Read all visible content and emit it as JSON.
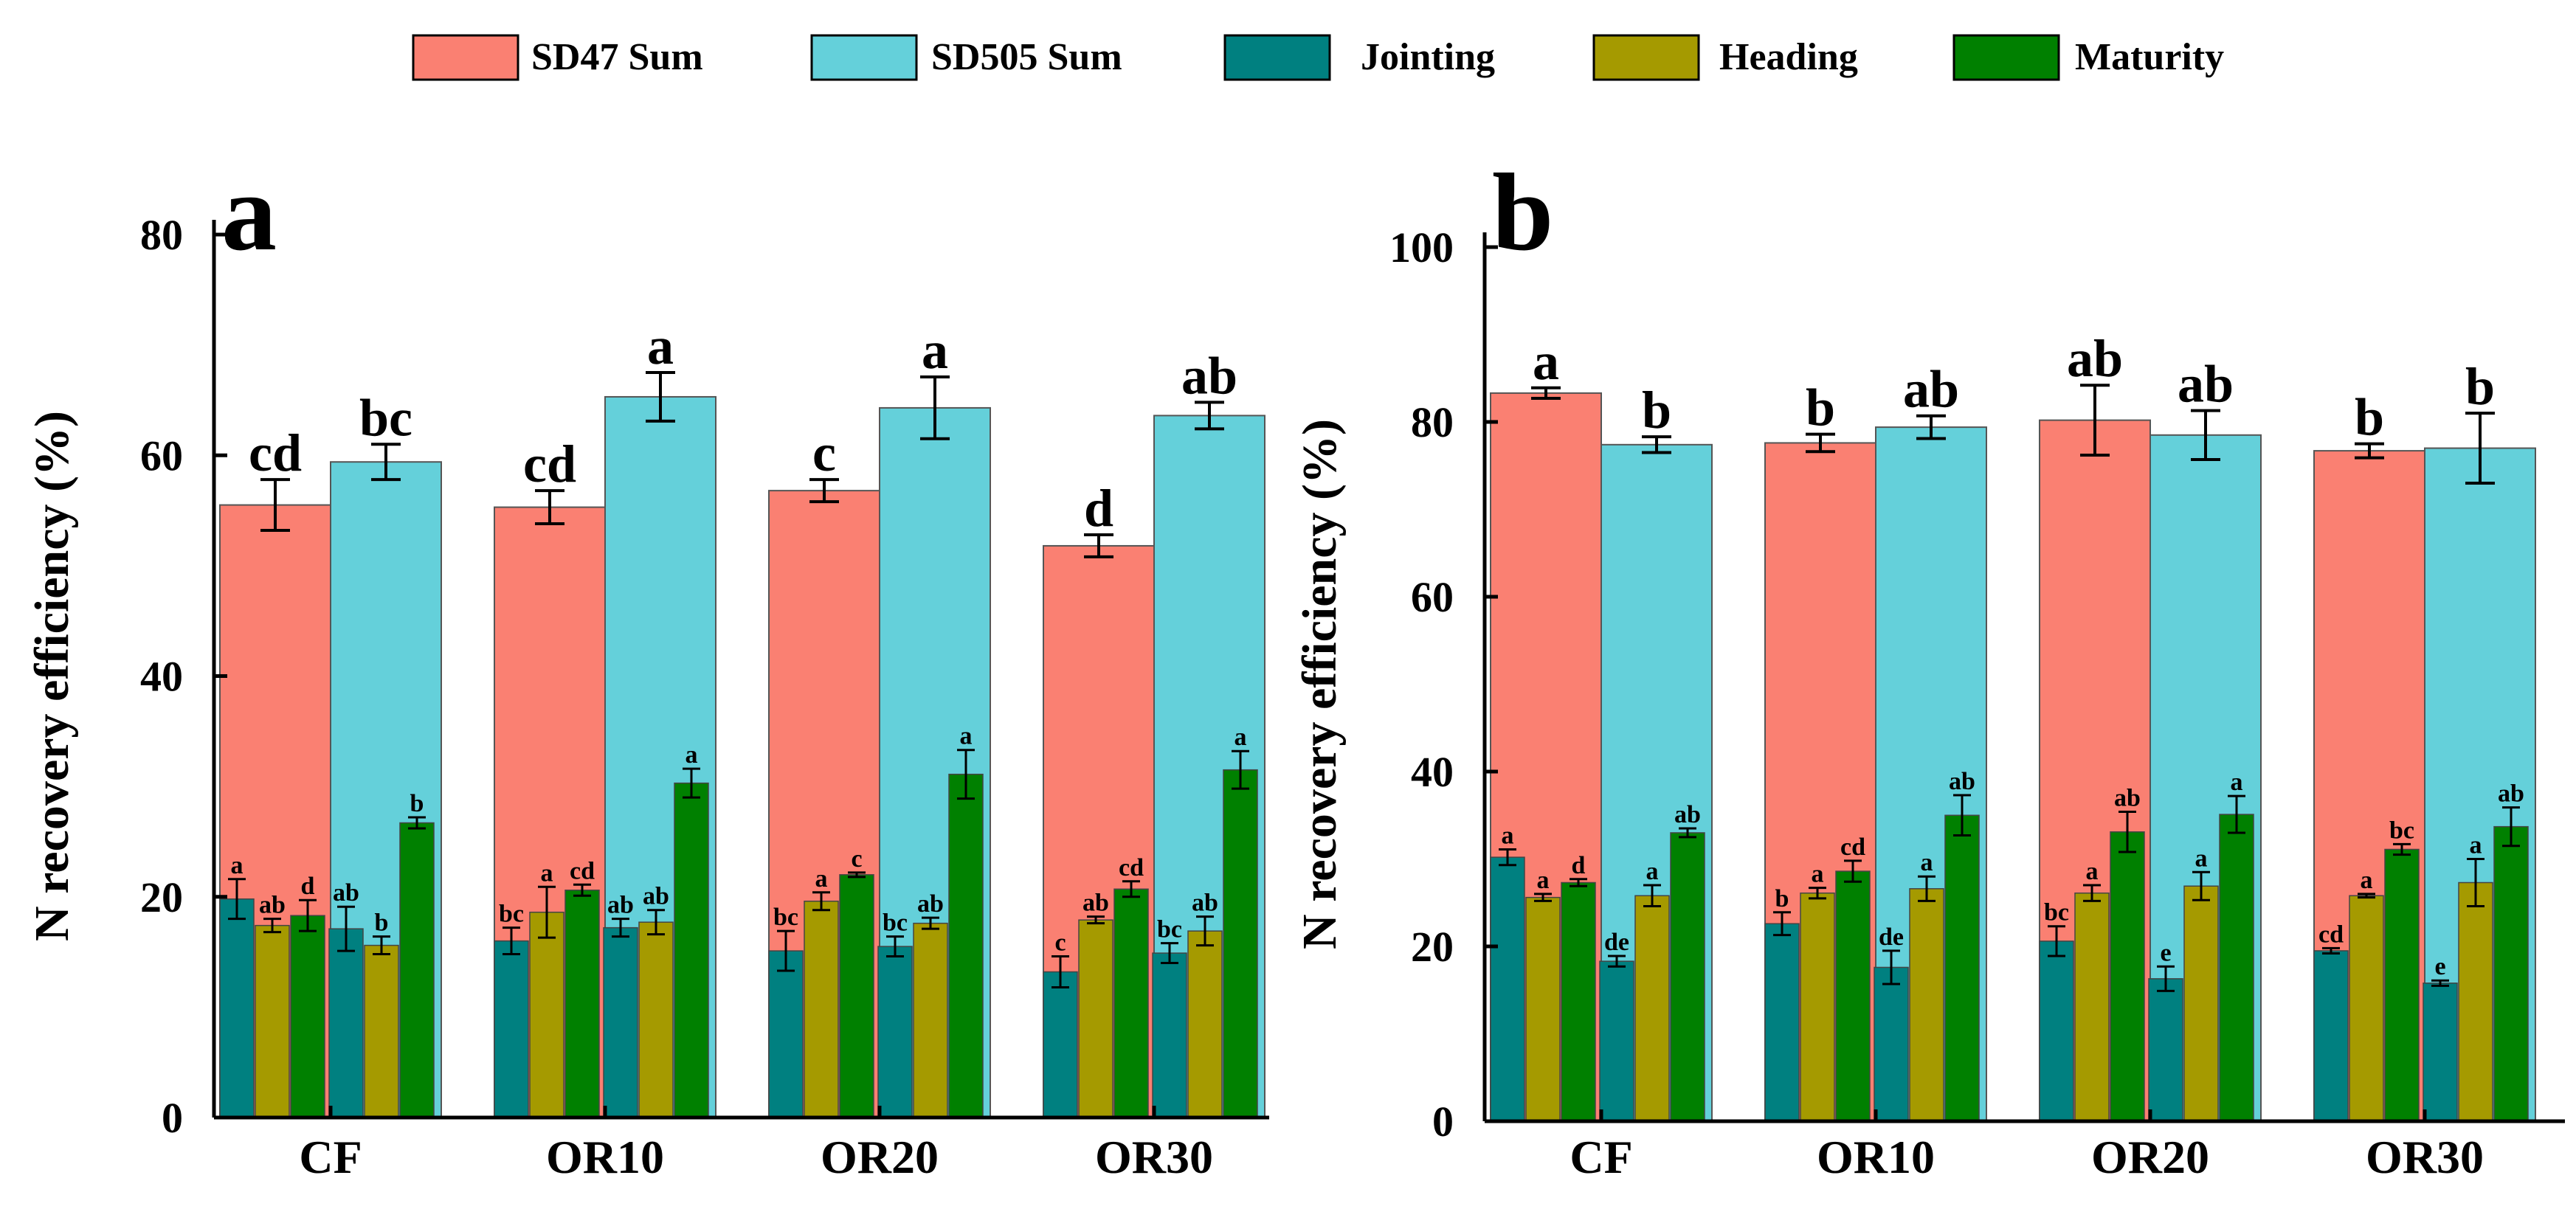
{
  "legend": [
    {
      "label": "SD47 Sum",
      "color": "#FA8072"
    },
    {
      "label": "SD505 Sum",
      "color": "#64D0DA"
    },
    {
      "label": "Jointing",
      "color": "#008080"
    },
    {
      "label": "Heading",
      "color": "#A59A00"
    },
    {
      "label": "Maturity",
      "color": "#008000"
    }
  ],
  "chart_data": [
    {
      "type": "bar",
      "panel_label": "a",
      "title": "",
      "xlabel": "",
      "ylabel": "N recovery efficiency (%)",
      "ylim": [
        0,
        80
      ],
      "yticks": [
        0,
        20,
        40,
        60,
        80
      ],
      "categories": [
        "CF",
        "OR10",
        "OR20",
        "OR30"
      ],
      "cultivars": [
        {
          "name": "SD47",
          "sum": {
            "values": [
              55.5,
              55.3,
              56.8,
              51.8
            ],
            "errors": [
              2.3,
              1.5,
              1.0,
              1.0
            ],
            "letters": [
              "cd",
              "cd",
              "c",
              "d"
            ]
          },
          "stages": {
            "Jointing": {
              "values": [
                19.8,
                16.0,
                15.1,
                13.2
              ],
              "errors": [
                1.8,
                1.2,
                1.8,
                1.4
              ],
              "letters": [
                "a",
                "bc",
                "bc",
                "c"
              ]
            },
            "Heading": {
              "values": [
                17.4,
                18.6,
                19.6,
                17.9
              ],
              "errors": [
                0.6,
                2.3,
                0.8,
                0.3
              ],
              "letters": [
                "ab",
                "a",
                "a",
                "ab"
              ]
            },
            "Maturity": {
              "values": [
                18.3,
                20.6,
                22.0,
                20.7
              ],
              "errors": [
                1.4,
                0.5,
                0.2,
                0.7
              ],
              "letters": [
                "d",
                "cd",
                "c",
                "cd"
              ]
            }
          }
        },
        {
          "name": "SD505",
          "sum": {
            "values": [
              59.4,
              65.3,
              64.3,
              63.6
            ],
            "errors": [
              1.6,
              2.2,
              2.8,
              1.2
            ],
            "letters": [
              "bc",
              "a",
              "a",
              "ab"
            ]
          },
          "stages": {
            "Jointing": {
              "values": [
                17.1,
                17.2,
                15.5,
                14.9
              ],
              "errors": [
                2.0,
                0.8,
                0.9,
                0.9
              ],
              "letters": [
                "ab",
                "ab",
                "bc",
                "bc"
              ]
            },
            "Heading": {
              "values": [
                15.6,
                17.7,
                17.6,
                16.9
              ],
              "errors": [
                0.8,
                1.1,
                0.5,
                1.3
              ],
              "letters": [
                "b",
                "ab",
                "ab",
                "ab"
              ]
            },
            "Maturity": {
              "values": [
                26.7,
                30.3,
                31.1,
                31.5
              ],
              "errors": [
                0.5,
                1.3,
                2.2,
                1.7
              ],
              "letters": [
                "b",
                "a",
                "a",
                "a"
              ]
            }
          }
        }
      ]
    },
    {
      "type": "bar",
      "panel_label": "b",
      "title": "",
      "xlabel": "",
      "ylabel": "N recovery efficiency (%)",
      "ylim": [
        0,
        100
      ],
      "yticks": [
        0,
        20,
        40,
        60,
        80,
        100
      ],
      "categories": [
        "CF",
        "OR10",
        "OR20",
        "OR30"
      ],
      "cultivars": [
        {
          "name": "SD47",
          "sum": {
            "values": [
              83.3,
              77.6,
              80.2,
              76.7
            ],
            "errors": [
              0.6,
              1.0,
              4.0,
              0.8
            ],
            "letters": [
              "a",
              "b",
              "ab",
              "b"
            ]
          },
          "stages": {
            "Jointing": {
              "values": [
                30.2,
                22.6,
                20.6,
                19.5
              ],
              "errors": [
                0.9,
                1.3,
                1.7,
                0.3
              ],
              "letters": [
                "a",
                "b",
                "bc",
                "cd"
              ]
            },
            "Heading": {
              "values": [
                25.6,
                26.1,
                26.1,
                25.8
              ],
              "errors": [
                0.4,
                0.6,
                0.9,
                0.2
              ],
              "letters": [
                "a",
                "a",
                "a",
                "a"
              ]
            },
            "Maturity": {
              "values": [
                27.3,
                28.6,
                33.1,
                31.1
              ],
              "errors": [
                0.4,
                1.2,
                2.3,
                0.6
              ],
              "letters": [
                "d",
                "cd",
                "ab",
                "bc"
              ]
            }
          }
        },
        {
          "name": "SD505",
          "sum": {
            "values": [
              77.4,
              79.4,
              78.5,
              77.0
            ],
            "errors": [
              0.9,
              1.3,
              2.8,
              4.0
            ],
            "letters": [
              "b",
              "ab",
              "ab",
              "b"
            ]
          },
          "stages": {
            "Jointing": {
              "values": [
                18.3,
                17.6,
                16.3,
                15.8
              ],
              "errors": [
                0.6,
                1.9,
                1.4,
                0.3
              ],
              "letters": [
                "de",
                "de",
                "e",
                "e"
              ]
            },
            "Heading": {
              "values": [
                25.8,
                26.6,
                26.9,
                27.3
              ],
              "errors": [
                1.2,
                1.4,
                1.6,
                2.7
              ],
              "letters": [
                "a",
                "a",
                "a",
                "a"
              ]
            },
            "Maturity": {
              "values": [
                33.0,
                35.0,
                35.1,
                33.7
              ],
              "errors": [
                0.5,
                2.3,
                2.1,
                2.2
              ],
              "letters": [
                "ab",
                "ab",
                "a",
                "ab"
              ]
            }
          }
        }
      ]
    }
  ]
}
